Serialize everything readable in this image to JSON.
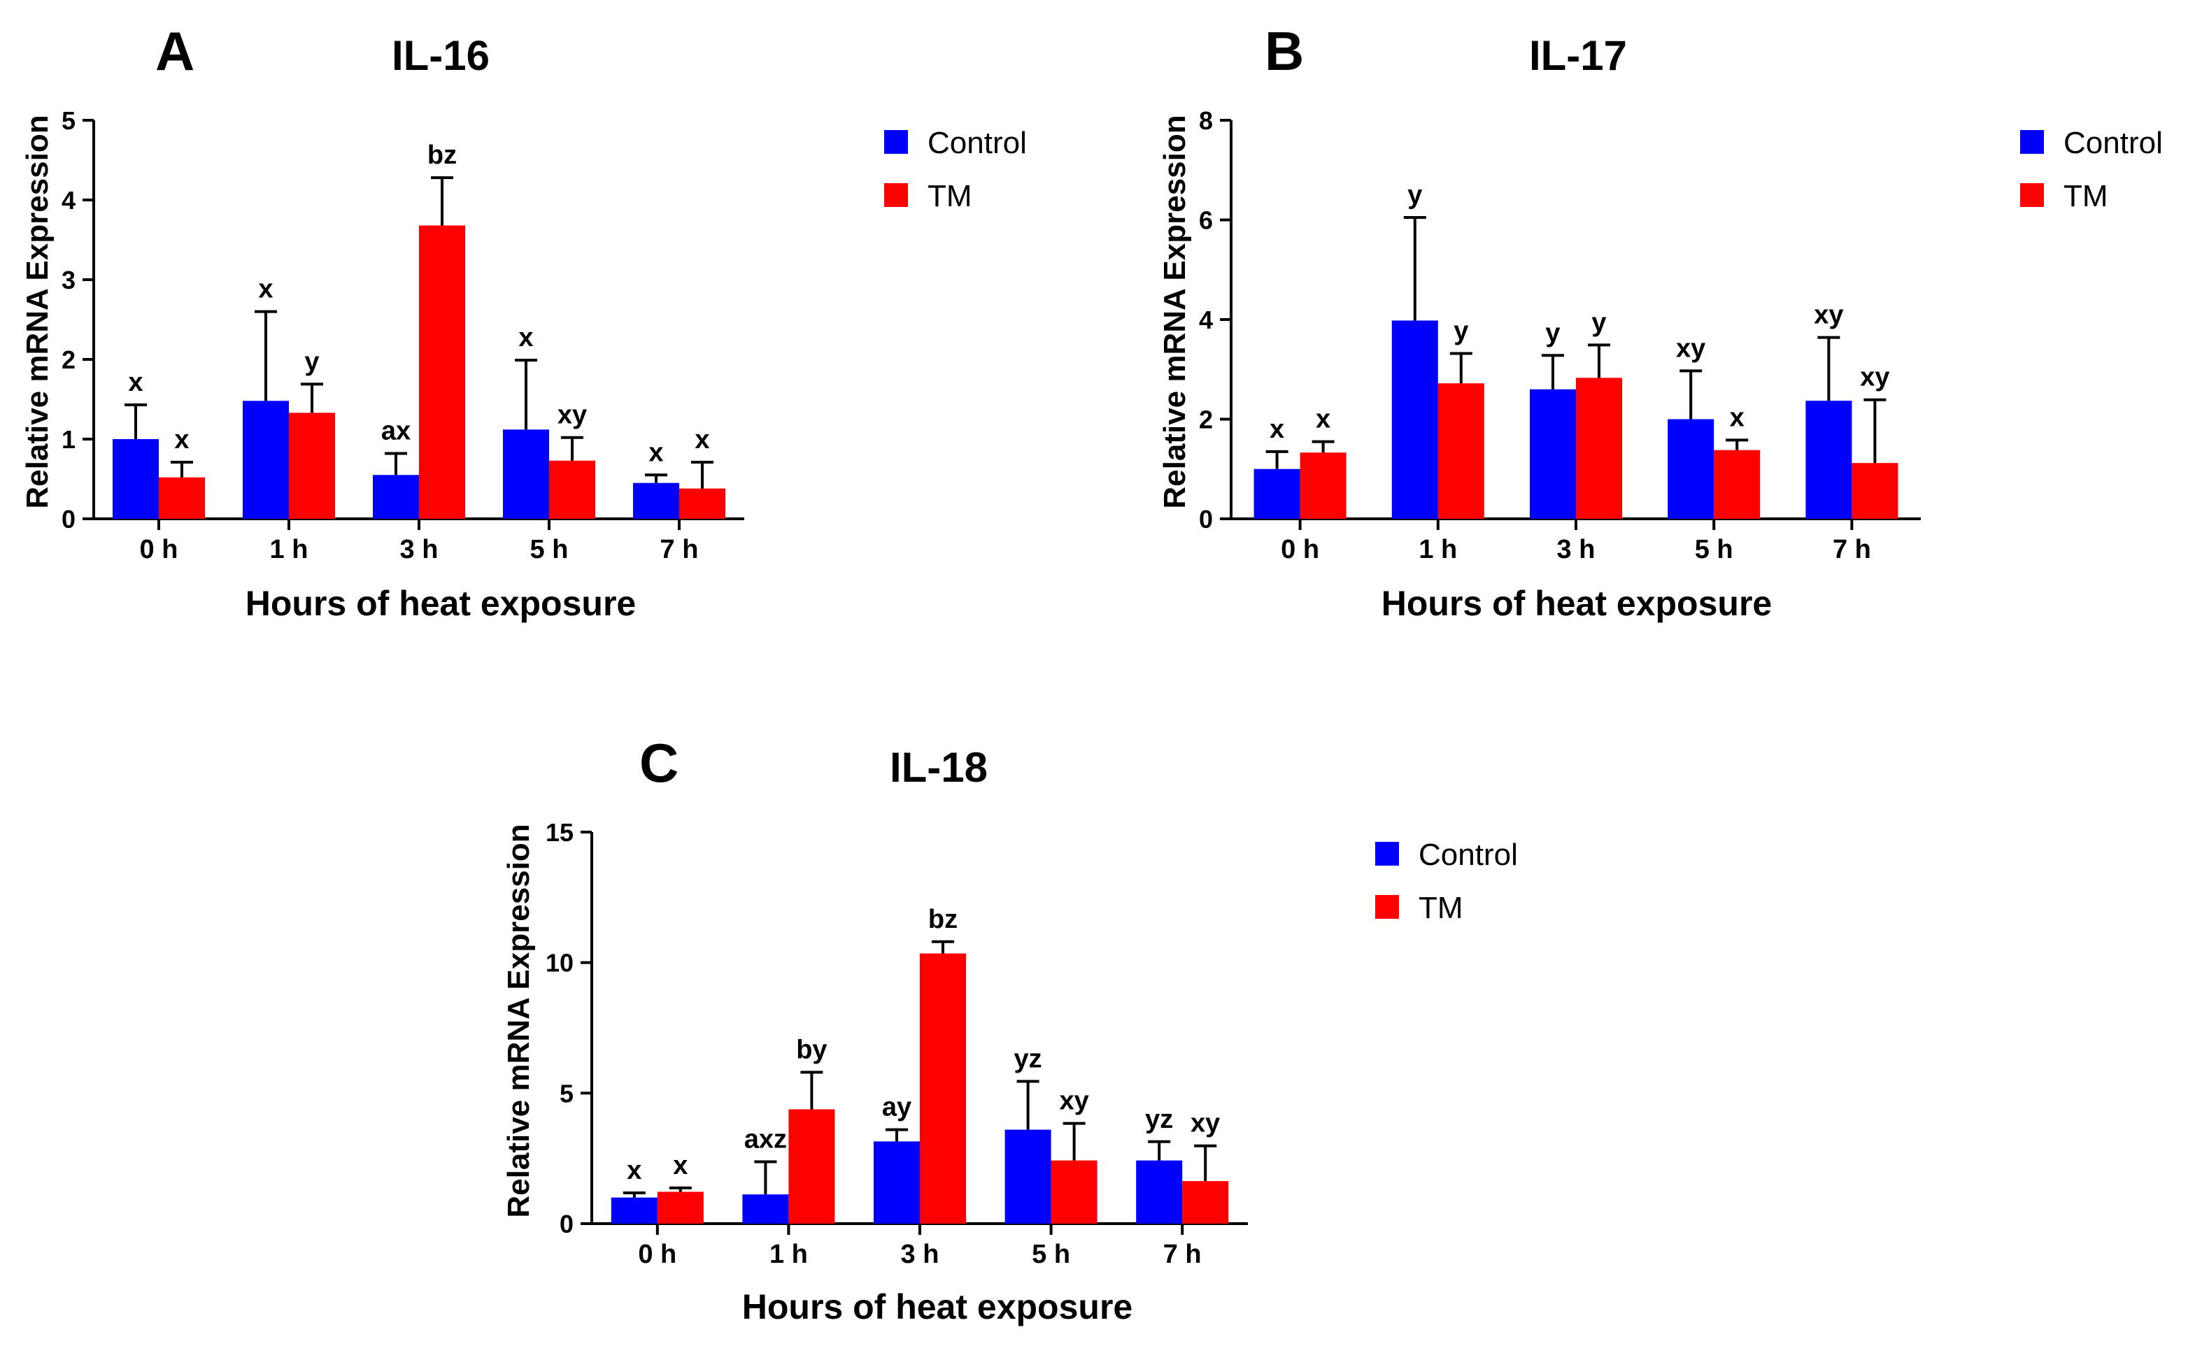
{
  "chart_data": [
    {
      "type": "bar",
      "panel": "A",
      "title": "IL-16",
      "xlabel": "Hours of heat exposure",
      "ylabel": "Relative mRNA Expression",
      "ylim": [
        0,
        5
      ],
      "yticks": [
        "0",
        "1",
        "2",
        "3",
        "4",
        "5"
      ],
      "categories": [
        "0 h",
        "1 h",
        "3 h",
        "5 h",
        "7 h"
      ],
      "legend_position": "top-right",
      "series": [
        {
          "name": "Control",
          "color": "#0000ff",
          "values": [
            1.0,
            1.48,
            0.55,
            1.12,
            0.45
          ],
          "errors": [
            0.43,
            1.12,
            0.27,
            0.87,
            0.1
          ],
          "labels": [
            "x",
            "x",
            "ax",
            "x",
            "x"
          ]
        },
        {
          "name": "TM",
          "color": "#ff0000",
          "values": [
            0.52,
            1.33,
            3.68,
            0.73,
            0.38
          ],
          "errors": [
            0.19,
            0.36,
            0.6,
            0.29,
            0.33
          ],
          "labels": [
            "x",
            "y",
            "bz",
            "xy",
            "x"
          ]
        }
      ]
    },
    {
      "type": "bar",
      "panel": "B",
      "title": "IL-17",
      "xlabel": "Hours of heat exposure",
      "ylabel": "Relative mRNA Expression",
      "ylim": [
        0,
        8
      ],
      "yticks": [
        "0",
        "2",
        "4",
        "6",
        "8"
      ],
      "categories": [
        "0 h",
        "1 h",
        "3 h",
        "5 h",
        "7 h"
      ],
      "legend_position": "top-right",
      "series": [
        {
          "name": "Control",
          "color": "#0000ff",
          "values": [
            1.0,
            3.98,
            2.6,
            2.0,
            2.37
          ],
          "errors": [
            0.35,
            2.07,
            0.68,
            0.97,
            1.27
          ],
          "labels": [
            "x",
            "y",
            "y",
            "xy",
            "xy"
          ]
        },
        {
          "name": "TM",
          "color": "#ff0000",
          "values": [
            1.33,
            2.72,
            2.83,
            1.38,
            1.12
          ],
          "errors": [
            0.22,
            0.6,
            0.66,
            0.2,
            1.27
          ],
          "labels": [
            "x",
            "y",
            "y",
            "x",
            "xy"
          ]
        }
      ]
    },
    {
      "type": "bar",
      "panel": "C",
      "title": "IL-18",
      "xlabel": "Hours of heat exposure",
      "ylabel": "Relative mRNA Expression",
      "ylim": [
        0,
        15
      ],
      "yticks": [
        "0",
        "5",
        "10",
        "15"
      ],
      "categories": [
        "0 h",
        "1 h",
        "3 h",
        "5 h",
        "7 h"
      ],
      "legend_position": "top-right",
      "series": [
        {
          "name": "Control",
          "color": "#0000ff",
          "values": [
            1.0,
            1.12,
            3.15,
            3.6,
            2.42
          ],
          "errors": [
            0.18,
            1.25,
            0.45,
            1.85,
            0.72
          ],
          "labels": [
            "x",
            "axz",
            "ay",
            "yz",
            "yz"
          ]
        },
        {
          "name": "TM",
          "color": "#ff0000",
          "values": [
            1.22,
            4.38,
            10.35,
            2.42,
            1.63
          ],
          "errors": [
            0.15,
            1.42,
            0.45,
            1.42,
            1.35
          ],
          "labels": [
            "x",
            "by",
            "bz",
            "xy",
            "xy"
          ]
        }
      ]
    }
  ]
}
